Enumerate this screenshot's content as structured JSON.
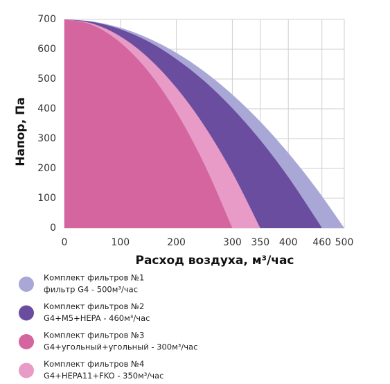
{
  "chart_data": {
    "type": "area",
    "x_label": "Расход воздуха, м³/час",
    "y_label": "Напор, Па",
    "xlim": [
      0,
      500
    ],
    "ylim": [
      0,
      700
    ],
    "xticks": [
      0,
      100,
      200,
      300,
      350,
      400,
      460,
      500
    ],
    "yticks": [
      0,
      100,
      200,
      300,
      400,
      500,
      600,
      700
    ],
    "grid": true,
    "series": [
      {
        "name": "Комплект фильтров №1",
        "description": "фильтр G4 - 500м³/час",
        "color": "#a9a7d6",
        "x": [
          0,
          50,
          100,
          150,
          200,
          250,
          300,
          350,
          400,
          450,
          500
        ],
        "values": [
          700,
          693,
          672,
          637,
          588,
          525,
          448,
          357,
          252,
          133,
          0
        ]
      },
      {
        "name": "Комплект фильтров №2",
        "description": "G4+M5+HEPA - 460м³/час",
        "color": "#6a4d9f",
        "x": [
          0,
          50,
          100,
          150,
          200,
          250,
          300,
          350,
          400,
          450,
          460
        ],
        "values": [
          700,
          692,
          667,
          626,
          567,
          493,
          402,
          295,
          171,
          30,
          0
        ]
      },
      {
        "name": "Комплект фильтров №3",
        "description": "G4+угольный+угольный - 300м³/час",
        "color": "#d4659f",
        "x": [
          0,
          50,
          100,
          150,
          200,
          250,
          300
        ],
        "values": [
          700,
          681,
          622,
          525,
          389,
          214,
          0
        ]
      },
      {
        "name": "Комплект фильтров №4",
        "description": "G4+HEPA11+FKO - 350м³/час",
        "color": "#e79bc6",
        "x": [
          0,
          50,
          100,
          150,
          200,
          250,
          300,
          350
        ],
        "values": [
          700,
          686,
          643,
          571,
          471,
          343,
          186,
          0
        ]
      }
    ]
  }
}
